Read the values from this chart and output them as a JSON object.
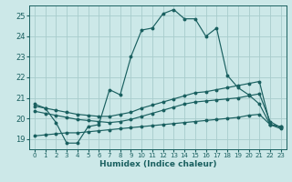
{
  "xlabel": "Humidex (Indice chaleur)",
  "bg_color": "#cce8e8",
  "grid_color": "#a8cccc",
  "line_color": "#1a6060",
  "xlim": [
    -0.5,
    23.5
  ],
  "ylim": [
    18.5,
    25.5
  ],
  "yticks": [
    19,
    20,
    21,
    22,
    23,
    24,
    25
  ],
  "xticks": [
    0,
    1,
    2,
    3,
    4,
    5,
    6,
    7,
    8,
    9,
    10,
    11,
    12,
    13,
    14,
    15,
    16,
    17,
    18,
    19,
    20,
    21,
    22,
    23
  ],
  "line1_y": [
    20.7,
    20.5,
    19.8,
    18.8,
    18.8,
    19.6,
    19.7,
    21.4,
    21.15,
    23.0,
    24.3,
    24.4,
    25.1,
    25.3,
    24.85,
    24.85,
    24.0,
    24.4,
    22.1,
    21.5,
    21.15,
    20.7,
    19.7,
    19.6
  ],
  "line2_y": [
    20.6,
    20.5,
    20.4,
    20.3,
    20.2,
    20.15,
    20.1,
    20.1,
    20.2,
    20.3,
    20.5,
    20.65,
    20.8,
    20.95,
    21.1,
    21.25,
    21.3,
    21.4,
    21.5,
    21.6,
    21.7,
    21.8,
    19.7,
    19.6
  ],
  "line3_y": [
    20.35,
    20.25,
    20.15,
    20.05,
    19.95,
    19.9,
    19.85,
    19.8,
    19.85,
    19.95,
    20.1,
    20.25,
    20.4,
    20.55,
    20.7,
    20.8,
    20.85,
    20.9,
    20.95,
    21.0,
    21.1,
    21.2,
    19.85,
    19.55
  ],
  "line4_y": [
    19.15,
    19.2,
    19.25,
    19.3,
    19.3,
    19.35,
    19.4,
    19.45,
    19.5,
    19.55,
    19.6,
    19.65,
    19.7,
    19.75,
    19.8,
    19.85,
    19.9,
    19.95,
    20.0,
    20.05,
    20.15,
    20.2,
    19.7,
    19.5
  ]
}
